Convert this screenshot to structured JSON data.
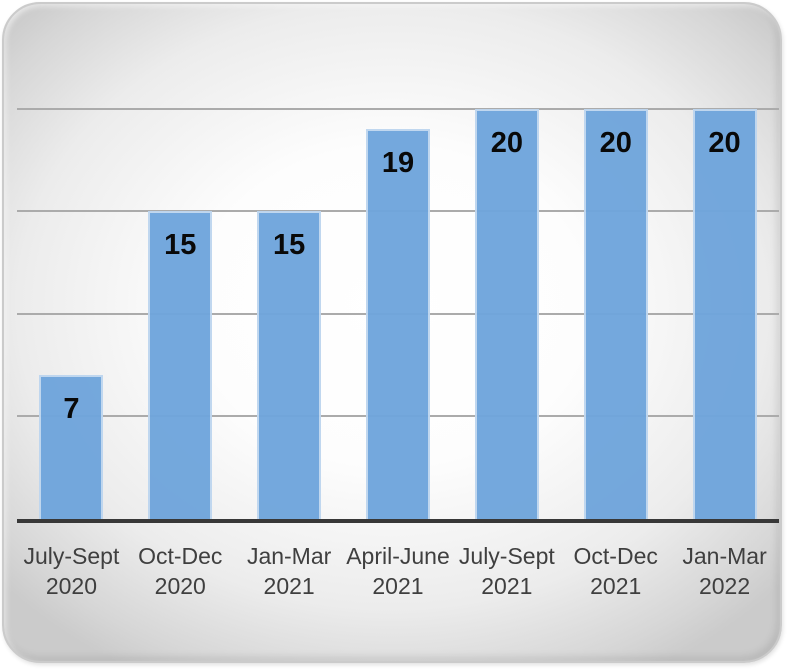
{
  "chart_data": {
    "type": "bar",
    "title": "",
    "xlabel": "",
    "ylabel": "",
    "categories": [
      "July-Sept 2020",
      "Oct-Dec 2020",
      "Jan-Mar 2021",
      "April-June 2021",
      "July-Sept 2021",
      "Oct-Dec 2021",
      "Jan-Mar 2022"
    ],
    "category_lines": [
      [
        "July-Sept",
        "2020"
      ],
      [
        "Oct-Dec",
        "2020"
      ],
      [
        "Jan-Mar",
        "2021"
      ],
      [
        "April-June",
        "2021"
      ],
      [
        "July-Sept",
        "2021"
      ],
      [
        "Oct-Dec",
        "2021"
      ],
      [
        "Jan-Mar",
        "2022"
      ]
    ],
    "values": [
      7,
      15,
      15,
      19,
      20,
      20,
      20
    ],
    "data_labels": [
      7,
      15,
      15,
      19,
      20,
      20,
      20
    ],
    "data_label_position": "inside-end",
    "ylim": [
      0,
      25
    ],
    "gridline_step": 5,
    "visible_gridlines": [
      5,
      10,
      15,
      20
    ],
    "grid": true,
    "legend": "none",
    "colors": {
      "bar_fill": "#6FA5DC",
      "bar_edge": "rgba(255,255,255,0.55)",
      "gridline": "#ABABAB",
      "axis_line": "#383838",
      "data_label": "#000000",
      "tick_label": "#3F3F3F",
      "panel_edge": "#CBCBCB",
      "panel_center": "#FFFFFF",
      "panel_corner": "#CBCBCB"
    }
  }
}
